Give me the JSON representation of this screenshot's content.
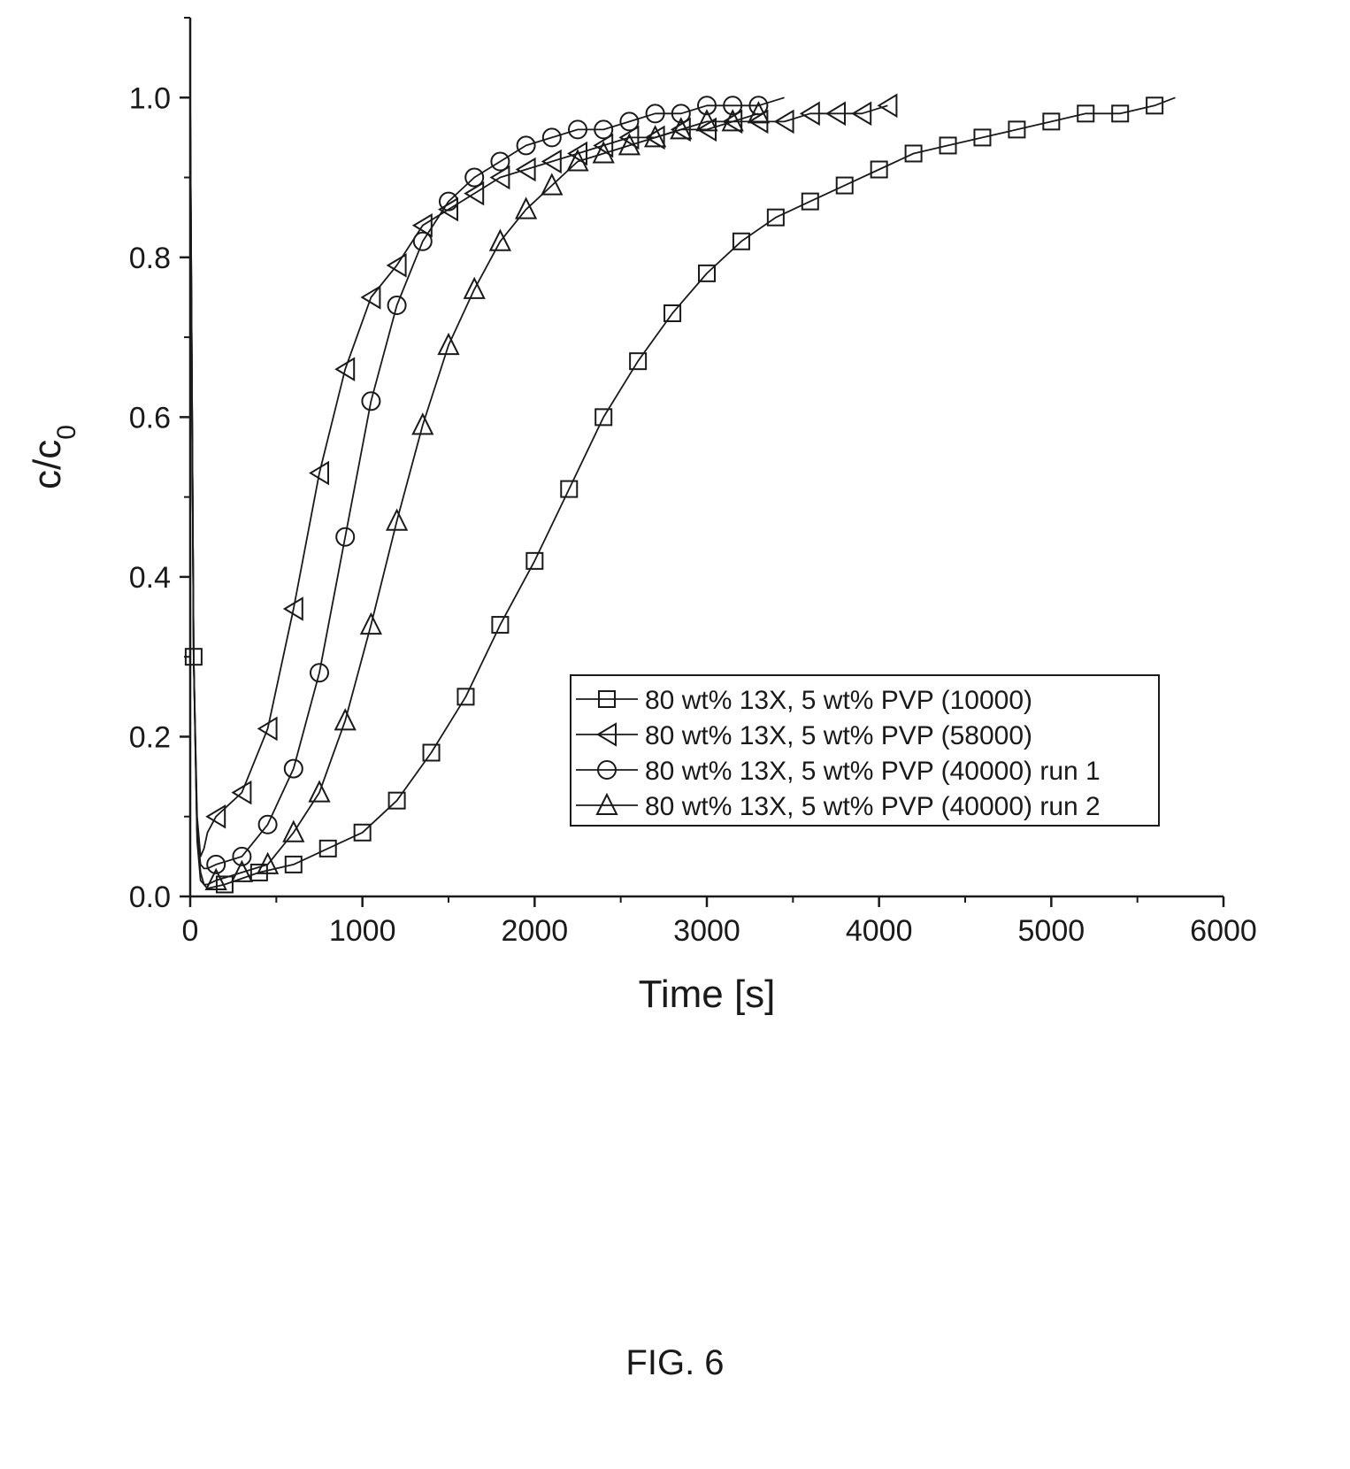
{
  "figure": {
    "caption": "FIG. 6"
  },
  "chart_data": {
    "type": "line",
    "xlabel": "Time [s]",
    "ylabel_main": "c/c",
    "ylabel_sub": "0",
    "xlim": [
      0,
      6000
    ],
    "ylim": [
      0,
      1.1
    ],
    "x_ticks": [
      0,
      1000,
      2000,
      3000,
      4000,
      5000,
      6000
    ],
    "x_tick_labels": [
      "0",
      "1000",
      "2000",
      "3000",
      "4000",
      "5000",
      "6000"
    ],
    "y_ticks": [
      0,
      0.2,
      0.4,
      0.6,
      0.8,
      1.0
    ],
    "y_tick_labels": [
      "0.0",
      "0.2",
      "0.4",
      "0.6",
      "0.8",
      "1.0"
    ],
    "grid": false,
    "legend_position": "bottom-right",
    "series": [
      {
        "name": "80 wt% 13X, 5 wt% PVP (10000)",
        "marker": "square",
        "x": [
          0,
          20,
          40,
          60,
          80,
          100,
          200,
          400,
          600,
          800,
          1000,
          1200,
          1400,
          1600,
          1800,
          2000,
          2200,
          2400,
          2600,
          2800,
          3000,
          3200,
          3400,
          3600,
          3800,
          4000,
          4200,
          4400,
          4600,
          4800,
          5000,
          5200,
          5400,
          5600,
          5720
        ],
        "y": [
          0.98,
          0.3,
          0.08,
          0.03,
          0.015,
          0.01,
          0.015,
          0.03,
          0.04,
          0.06,
          0.08,
          0.12,
          0.18,
          0.25,
          0.34,
          0.42,
          0.51,
          0.6,
          0.67,
          0.73,
          0.78,
          0.82,
          0.85,
          0.87,
          0.89,
          0.91,
          0.93,
          0.94,
          0.95,
          0.96,
          0.97,
          0.98,
          0.98,
          0.99,
          1.0
        ],
        "marker_x": [
          20,
          200,
          400,
          600,
          800,
          1000,
          1200,
          1400,
          1600,
          1800,
          2000,
          2200,
          2400,
          2600,
          2800,
          3000,
          3200,
          3400,
          3600,
          3800,
          4000,
          4200,
          4400,
          4600,
          4800,
          5000,
          5200,
          5400,
          5600
        ]
      },
      {
        "name": "80 wt% 13X, 5 wt% PVP (58000)",
        "marker": "triangle-left",
        "x": [
          0,
          20,
          40,
          60,
          80,
          100,
          150,
          300,
          450,
          600,
          750,
          900,
          1050,
          1200,
          1350,
          1500,
          1650,
          1800,
          1950,
          2100,
          2250,
          2400,
          2550,
          2700,
          2850,
          3000,
          3150,
          3300,
          3450,
          3600,
          3750,
          3900,
          4050
        ],
        "y": [
          1.0,
          0.3,
          0.1,
          0.05,
          0.06,
          0.08,
          0.1,
          0.13,
          0.21,
          0.36,
          0.53,
          0.66,
          0.75,
          0.79,
          0.84,
          0.86,
          0.88,
          0.9,
          0.91,
          0.92,
          0.93,
          0.94,
          0.95,
          0.95,
          0.96,
          0.96,
          0.97,
          0.97,
          0.97,
          0.98,
          0.98,
          0.98,
          0.99
        ],
        "marker_x": [
          150,
          300,
          450,
          600,
          750,
          900,
          1050,
          1200,
          1350,
          1500,
          1650,
          1800,
          1950,
          2100,
          2250,
          2400,
          2550,
          2700,
          2850,
          3000,
          3150,
          3300,
          3450,
          3600,
          3750,
          3900,
          4050
        ]
      },
      {
        "name": "80 wt% 13X, 5 wt% PVP (40000) run 1",
        "marker": "circle",
        "x": [
          0,
          20,
          40,
          60,
          80,
          100,
          150,
          300,
          450,
          600,
          750,
          900,
          1050,
          1200,
          1350,
          1500,
          1650,
          1800,
          1950,
          2100,
          2250,
          2400,
          2550,
          2700,
          2850,
          3000,
          3150,
          3300,
          3450
        ],
        "y": [
          1.0,
          0.3,
          0.08,
          0.04,
          0.035,
          0.035,
          0.04,
          0.05,
          0.09,
          0.16,
          0.28,
          0.45,
          0.62,
          0.74,
          0.82,
          0.87,
          0.9,
          0.92,
          0.94,
          0.95,
          0.96,
          0.96,
          0.97,
          0.98,
          0.98,
          0.99,
          0.99,
          0.99,
          1.0
        ],
        "marker_x": [
          150,
          300,
          450,
          600,
          750,
          900,
          1050,
          1200,
          1350,
          1500,
          1650,
          1800,
          1950,
          2100,
          2250,
          2400,
          2550,
          2700,
          2850,
          3000,
          3150,
          3300
        ]
      },
      {
        "name": "80 wt% 13X, 5 wt% PVP (40000) run 2",
        "marker": "triangle-up",
        "x": [
          0,
          20,
          40,
          60,
          80,
          100,
          150,
          300,
          450,
          600,
          750,
          900,
          1050,
          1200,
          1350,
          1500,
          1650,
          1800,
          1950,
          2100,
          2250,
          2400,
          2550,
          2700,
          2850,
          3000,
          3150,
          3300
        ],
        "y": [
          1.0,
          0.3,
          0.07,
          0.02,
          0.015,
          0.015,
          0.02,
          0.03,
          0.04,
          0.08,
          0.13,
          0.22,
          0.34,
          0.47,
          0.59,
          0.69,
          0.76,
          0.82,
          0.86,
          0.89,
          0.92,
          0.93,
          0.94,
          0.95,
          0.96,
          0.97,
          0.97,
          0.98
        ],
        "marker_x": [
          150,
          300,
          450,
          600,
          750,
          900,
          1050,
          1200,
          1350,
          1500,
          1650,
          1800,
          1950,
          2100,
          2250,
          2400,
          2550,
          2700,
          2850,
          3000,
          3150,
          3300
        ]
      }
    ]
  }
}
